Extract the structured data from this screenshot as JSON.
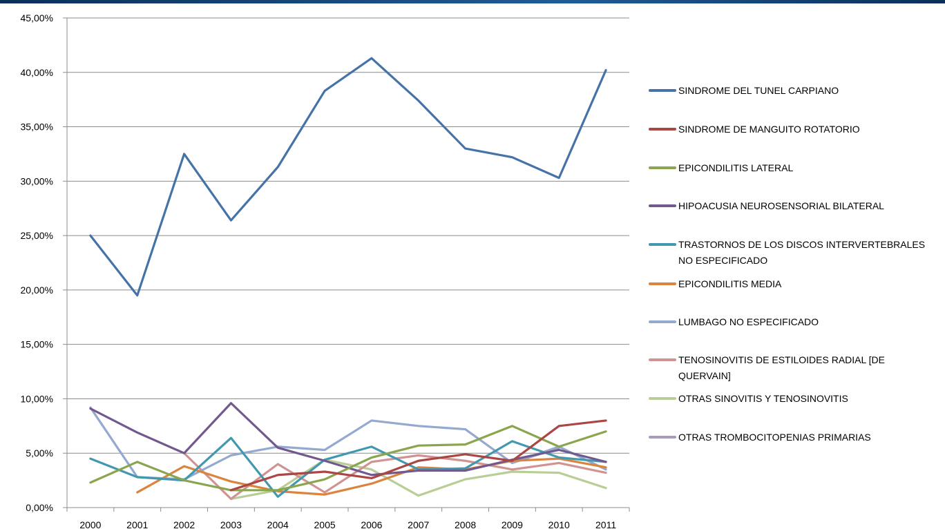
{
  "chart_data": {
    "type": "line",
    "title": "",
    "xlabel": "",
    "ylabel": "",
    "categories": [
      "2000",
      "2001",
      "2002",
      "2003",
      "2004",
      "2005",
      "2006",
      "2007",
      "2008",
      "2009",
      "2010",
      "2011"
    ],
    "ylim": [
      0,
      45
    ],
    "yticks": [
      0,
      5,
      10,
      15,
      20,
      25,
      30,
      35,
      40,
      45
    ],
    "ytick_labels": [
      "0,00%",
      "5,00%",
      "10,00%",
      "15,00%",
      "20,00%",
      "25,00%",
      "30,00%",
      "35,00%",
      "40,00%",
      "45,00%"
    ],
    "grid": true,
    "legend_position": "right",
    "series": [
      {
        "name": "SINDROME DEL TUNEL CARPIANO",
        "legend_lines": [
          "SINDROME DEL TUNEL CARPIANO"
        ],
        "color": "#4572A7",
        "values": [
          25.0,
          19.5,
          32.5,
          26.4,
          31.3,
          38.3,
          41.3,
          37.4,
          33.0,
          32.2,
          30.3,
          40.2
        ]
      },
      {
        "name": "SINDROME DE MANGUITO ROTATORIO",
        "legend_lines": [
          "SINDROME DE MANGUITO ROTATORIO"
        ],
        "color": "#AA4643",
        "values": [
          null,
          null,
          null,
          1.6,
          3.0,
          3.3,
          2.7,
          4.3,
          4.9,
          4.3,
          7.5,
          8.0
        ]
      },
      {
        "name": "EPICONDILITIS LATERAL",
        "legend_lines": [
          "EPICONDILITIS LATERAL"
        ],
        "color": "#89A54E",
        "values": [
          2.3,
          4.2,
          2.5,
          1.6,
          1.6,
          2.6,
          4.6,
          5.7,
          5.8,
          7.5,
          5.6,
          7.0
        ]
      },
      {
        "name": "HIPOACUSIA NEUROSENSORIAL  BILATERAL",
        "legend_lines": [
          "HIPOACUSIA NEUROSENSORIAL  BILATERAL"
        ],
        "color": "#71588F",
        "values": [
          9.1,
          6.9,
          5.0,
          9.6,
          5.5,
          4.3,
          3.0,
          3.4,
          3.4,
          4.4,
          5.3,
          4.2
        ]
      },
      {
        "name": "TRASTORNOS DE LOS DISCOS INTERVERTEBRALES NO ESPECIFICADO",
        "legend_lines": [
          "TRASTORNOS DE LOS DISCOS INTERVERTEBRALES",
          "NO ESPECIFICADO"
        ],
        "color": "#4198AF",
        "values": [
          4.5,
          2.8,
          2.5,
          6.4,
          1.0,
          4.4,
          5.6,
          3.5,
          3.6,
          6.1,
          4.6,
          4.2
        ]
      },
      {
        "name": "EPICONDILITIS MEDIA",
        "legend_lines": [
          "EPICONDILITIS MEDIA"
        ],
        "color": "#DB843D",
        "values": [
          null,
          1.4,
          3.8,
          2.4,
          1.5,
          1.2,
          2.2,
          3.7,
          3.5,
          4.3,
          4.5,
          3.7
        ]
      },
      {
        "name": "LUMBAGO NO ESPECIFICADO",
        "legend_lines": [
          "LUMBAGO NO ESPECIFICADO"
        ],
        "color": "#93A9CF",
        "values": [
          9.2,
          2.8,
          2.6,
          4.8,
          5.6,
          5.3,
          8.0,
          7.5,
          7.2,
          4.1,
          5.6,
          3.5
        ]
      },
      {
        "name": "TENOSINOVITIS DE ESTILOIDES RADIAL [DE QUERVAIN]",
        "legend_lines": [
          "TENOSINOVITIS DE ESTILOIDES RADIAL [DE",
          "QUERVAIN]"
        ],
        "color": "#D19392",
        "values": [
          null,
          null,
          5.0,
          0.8,
          4.0,
          1.4,
          4.2,
          4.8,
          4.3,
          3.5,
          4.1,
          3.2
        ]
      },
      {
        "name": "OTRAS SINOVITIS Y TENOSINOVITIS",
        "legend_lines": [
          "OTRAS SINOVITIS Y TENOSINOVITIS"
        ],
        "color": "#B9CD96",
        "values": [
          null,
          null,
          null,
          0.8,
          1.6,
          4.4,
          3.5,
          1.1,
          2.6,
          3.3,
          3.2,
          1.8
        ]
      },
      {
        "name": "OTRAS TROMBOCITOPENIAS PRIMARIAS",
        "legend_lines": [
          "OTRAS TROMBOCITOPENIAS PRIMARIAS"
        ],
        "color": "#A99BBD",
        "values": [
          null,
          null,
          null,
          null,
          null,
          null,
          null,
          null,
          null,
          4.1,
          5.5,
          null
        ]
      }
    ]
  }
}
